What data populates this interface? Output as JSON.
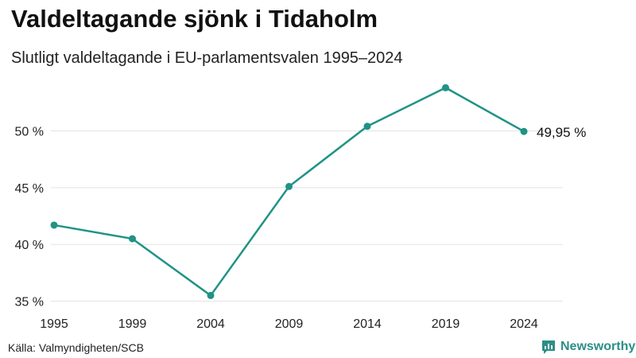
{
  "header": {
    "title": "Valdeltagande sjönk i Tidaholm",
    "subtitle": "Slutligt valdeltagande i EU-parlamentsvalen 1995–2024"
  },
  "footer": {
    "source": "Källa: Valmyndigheten/SCB",
    "brand": "Newsworthy",
    "brand_icon": "bar-chart-speech-icon"
  },
  "colors": {
    "line": "#1f9385",
    "grid": "#e3e3e3",
    "brand": "#2b8f86"
  },
  "chart_data": {
    "type": "line",
    "title": "Valdeltagande sjönk i Tidaholm",
    "subtitle": "Slutligt valdeltagande i EU-parlamentsvalen 1995–2024",
    "xlabel": "",
    "ylabel": "",
    "x": [
      "1995",
      "1999",
      "2004",
      "2009",
      "2014",
      "2019",
      "2024"
    ],
    "series": [
      {
        "name": "Valdeltagande",
        "values": [
          41.7,
          40.5,
          35.5,
          45.1,
          50.4,
          53.8,
          49.95
        ]
      }
    ],
    "ylim": [
      34.9,
      54.8
    ],
    "yticks": [
      35,
      40,
      45,
      50
    ],
    "ytick_labels": [
      "35 %",
      "40 %",
      "45 %",
      "50 %"
    ],
    "end_label": "49,95 %",
    "grid": true
  }
}
